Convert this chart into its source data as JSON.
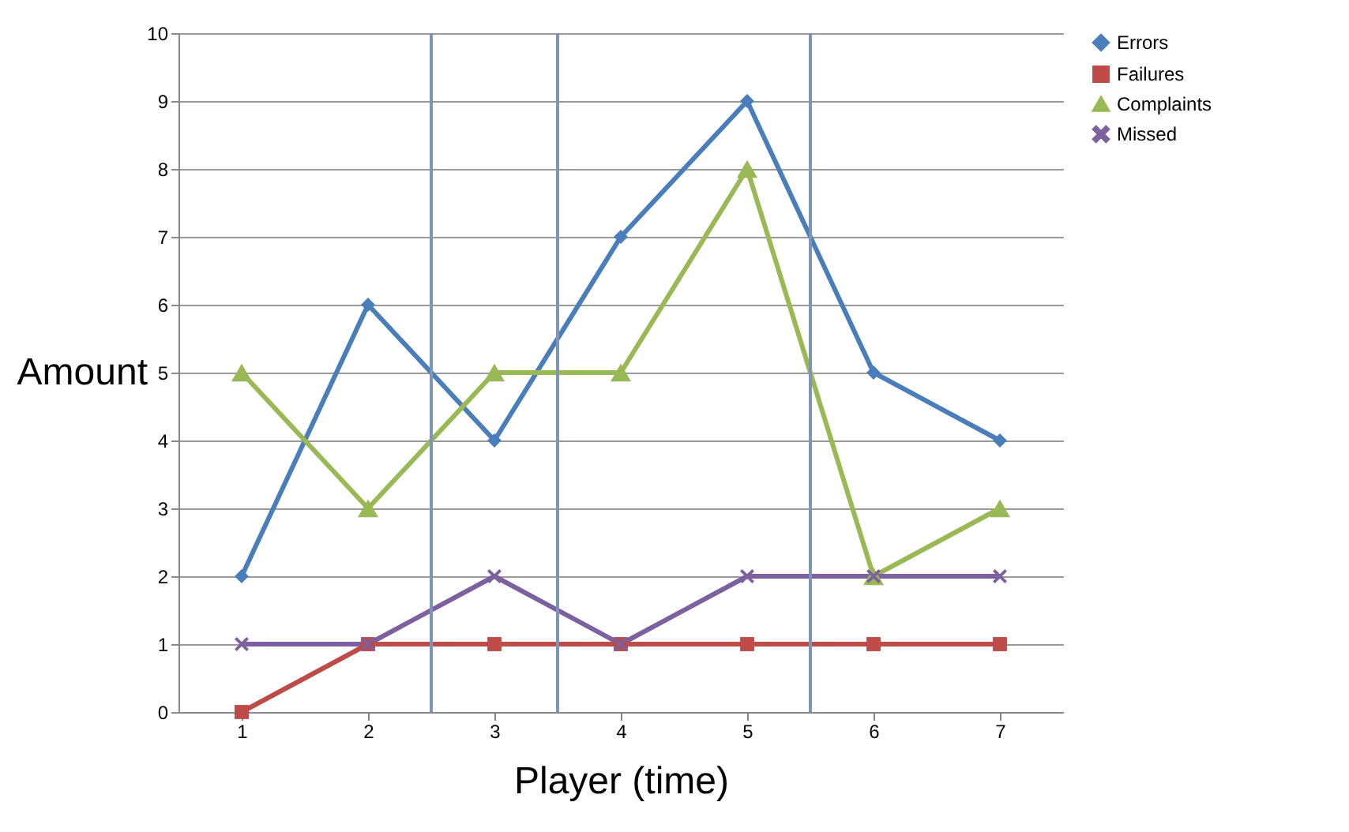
{
  "chart_data": {
    "type": "line",
    "xlabel": "Player (time)",
    "ylabel": "Amount",
    "x": [
      1,
      2,
      3,
      4,
      5,
      6,
      7
    ],
    "xlim": [
      0.5,
      7.5
    ],
    "xticks": [
      1,
      2,
      3,
      4,
      5,
      6,
      7
    ],
    "ylim": [
      0,
      10
    ],
    "yticks": [
      0,
      1,
      2,
      3,
      4,
      5,
      6,
      7,
      8,
      9,
      10
    ],
    "grid": "y",
    "legend": "right",
    "series": [
      {
        "name": "Errors",
        "color": "#4a7ebb",
        "marker": "diamond",
        "values": [
          2,
          6,
          4,
          7,
          9,
          5,
          4
        ]
      },
      {
        "name": "Failures",
        "color": "#be4b48",
        "marker": "square",
        "values": [
          0,
          1,
          1,
          1,
          1,
          1,
          1
        ]
      },
      {
        "name": "Complaints",
        "color": "#98b954",
        "marker": "triangle",
        "values": [
          5,
          3,
          5,
          5,
          8,
          2,
          3
        ]
      },
      {
        "name": "Missed",
        "color": "#7d60a0",
        "marker": "cross",
        "values": [
          1,
          1,
          2,
          1,
          2,
          2,
          2
        ]
      }
    ],
    "ref_lines": [
      {
        "axis": "x",
        "value": 2.5,
        "color": "#7f95b8"
      },
      {
        "axis": "x",
        "value": 3.5,
        "color": "#7f95b8"
      },
      {
        "axis": "x",
        "value": 5.5,
        "color": "#7f95b8"
      }
    ]
  }
}
